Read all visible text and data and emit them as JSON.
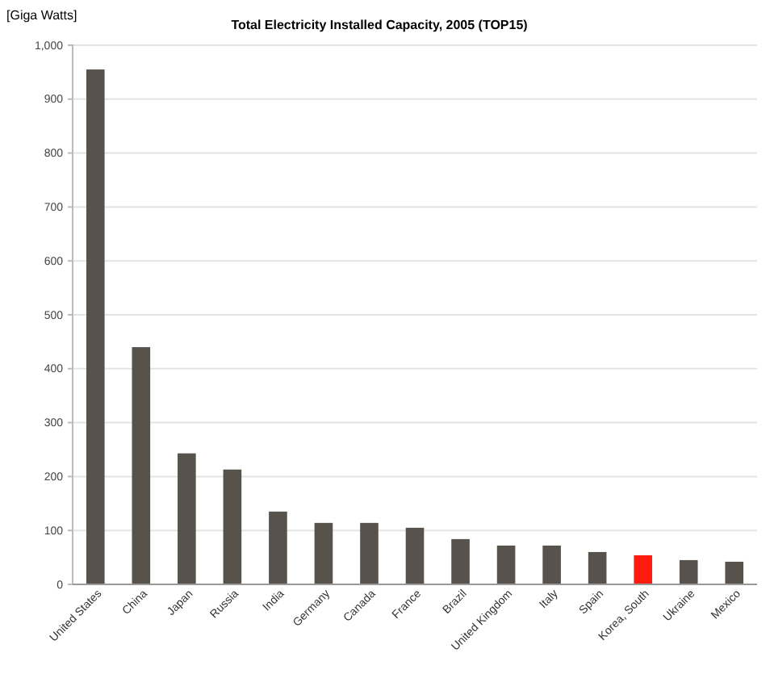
{
  "chart_data": {
    "type": "bar",
    "title": "Total  Electricity Installed Capacity, 2005  (TOP15)",
    "ylabel": "[Giga Watts]",
    "categories": [
      "United States",
      "China",
      "Japan",
      "Russia",
      "India",
      "Germany",
      "Canada",
      "France",
      "Brazil",
      "United Kingdom",
      "Italy",
      "Spain",
      "Korea, South",
      "Ukraine",
      "Mexico"
    ],
    "values": [
      955,
      440,
      243,
      213,
      135,
      114,
      114,
      105,
      84,
      72,
      72,
      60,
      54,
      45,
      42
    ],
    "colors": [
      "#57524c",
      "#57524c",
      "#57524c",
      "#57524c",
      "#57524c",
      "#57524c",
      "#57524c",
      "#57524c",
      "#57524c",
      "#57524c",
      "#57524c",
      "#57524c",
      "#ff1a10",
      "#57524c",
      "#57524c"
    ],
    "ylim": [
      0,
      1000
    ],
    "yticks": [
      0,
      100,
      200,
      300,
      400,
      500,
      600,
      700,
      800,
      900,
      {
        "value": 1000,
        "label": "1,000"
      }
    ],
    "grid": "y"
  }
}
